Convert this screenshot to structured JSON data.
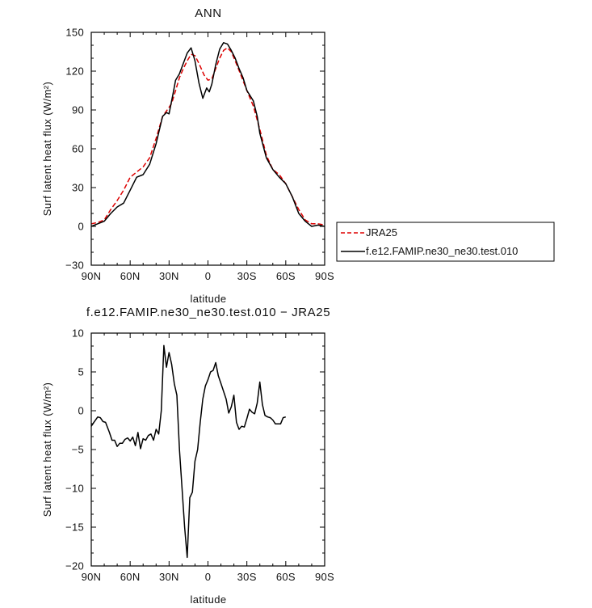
{
  "chart_data": [
    {
      "type": "line",
      "title": "ANN",
      "xlabel": "latitude",
      "ylabel": "Surf latent heat flux (W/m²)",
      "xlim": [
        90,
        -90
      ],
      "ylim": [
        -30,
        150
      ],
      "xticks": [
        90,
        60,
        30,
        0,
        -30,
        -60,
        -90
      ],
      "xtick_labels": [
        "90N",
        "60N",
        "30N",
        "0",
        "30S",
        "60S",
        "90S"
      ],
      "yticks": [
        -30,
        0,
        30,
        60,
        90,
        120,
        150
      ],
      "ytick_labels": [
        "−30",
        "0",
        "30",
        "60",
        "90",
        "120",
        "150"
      ],
      "grid": false,
      "legend_position": "outside-right",
      "series": [
        {
          "name": "JRA25",
          "color": "#dd0000",
          "dash": "dashed",
          "points": [
            [
              90,
              2
            ],
            [
              85,
              3
            ],
            [
              80,
              5
            ],
            [
              75,
              13
            ],
            [
              70,
              20
            ],
            [
              65,
              28
            ],
            [
              60,
              38
            ],
            [
              55,
              42
            ],
            [
              50,
              46
            ],
            [
              45,
              53
            ],
            [
              40,
              68
            ],
            [
              35,
              85
            ],
            [
              30,
              92
            ],
            [
              28,
              95
            ],
            [
              25,
              105
            ],
            [
              22,
              115
            ],
            [
              19,
              122
            ],
            [
              16,
              128
            ],
            [
              13,
              133
            ],
            [
              10,
              132
            ],
            [
              7,
              126
            ],
            [
              3,
              117
            ],
            [
              0,
              113
            ],
            [
              -3,
              114
            ],
            [
              -6,
              122
            ],
            [
              -9,
              130
            ],
            [
              -12,
              136
            ],
            [
              -15,
              138
            ],
            [
              -18,
              135
            ],
            [
              -21,
              128
            ],
            [
              -25,
              118
            ],
            [
              -30,
              105
            ],
            [
              -35,
              93
            ],
            [
              -40,
              75
            ],
            [
              -45,
              55
            ],
            [
              -50,
              44
            ],
            [
              -55,
              40
            ],
            [
              -60,
              33
            ],
            [
              -65,
              23
            ],
            [
              -70,
              13
            ],
            [
              -75,
              5
            ],
            [
              -80,
              2
            ],
            [
              -85,
              2
            ],
            [
              -90,
              1
            ]
          ]
        },
        {
          "name": "f.e12.FAMIP.ne30_ne30.test.010",
          "color": "#000000",
          "dash": "solid",
          "points": [
            [
              90,
              0
            ],
            [
              85,
              2
            ],
            [
              80,
              4
            ],
            [
              75,
              10
            ],
            [
              70,
              15
            ],
            [
              65,
              18
            ],
            [
              60,
              28
            ],
            [
              55,
              38
            ],
            [
              50,
              40
            ],
            [
              45,
              48
            ],
            [
              40,
              64
            ],
            [
              35,
              85
            ],
            [
              32,
              88
            ],
            [
              30,
              87
            ],
            [
              27,
              102
            ],
            [
              25,
              113
            ],
            [
              22,
              118
            ],
            [
              19,
              126
            ],
            [
              16,
              134
            ],
            [
              13,
              138
            ],
            [
              10,
              128
            ],
            [
              7,
              111
            ],
            [
              4,
              99
            ],
            [
              1,
              107
            ],
            [
              -1,
              104
            ],
            [
              -3,
              110
            ],
            [
              -6,
              125
            ],
            [
              -9,
              137
            ],
            [
              -12,
              142
            ],
            [
              -15,
              141
            ],
            [
              -18,
              136
            ],
            [
              -21,
              130
            ],
            [
              -24,
              122
            ],
            [
              -27,
              115
            ],
            [
              -30,
              105
            ],
            [
              -35,
              97
            ],
            [
              -38,
              85
            ],
            [
              -40,
              72
            ],
            [
              -45,
              53
            ],
            [
              -50,
              44
            ],
            [
              -55,
              38
            ],
            [
              -60,
              33
            ],
            [
              -65,
              23
            ],
            [
              -70,
              10
            ],
            [
              -75,
              4
            ],
            [
              -80,
              0
            ],
            [
              -85,
              1
            ],
            [
              -90,
              0
            ]
          ]
        }
      ]
    },
    {
      "type": "line",
      "title": "f.e12.FAMIP.ne30_ne30.test.010 − JRA25",
      "xlabel": "latitude",
      "ylabel": "Surf latent heat flux (W/m²)",
      "xlim": [
        90,
        -90
      ],
      "ylim": [
        -20,
        10
      ],
      "xticks": [
        90,
        60,
        30,
        0,
        -30,
        -60,
        -90
      ],
      "xtick_labels": [
        "90N",
        "60N",
        "30N",
        "0",
        "30S",
        "60S",
        "90S"
      ],
      "yticks": [
        -20,
        -15,
        -10,
        -5,
        0,
        5,
        10
      ],
      "ytick_labels": [
        "−20",
        "−15",
        "−10",
        "−5",
        "0",
        "5",
        "10"
      ],
      "grid": false,
      "series": [
        {
          "color": "#000000",
          "dash": "solid",
          "points": [
            [
              90,
              -2.0
            ],
            [
              88,
              -1.5
            ],
            [
              85,
              -0.8
            ],
            [
              83,
              -0.9
            ],
            [
              81,
              -1.4
            ],
            [
              79,
              -1.5
            ],
            [
              76,
              -2.8
            ],
            [
              74,
              -3.8
            ],
            [
              72,
              -3.8
            ],
            [
              70,
              -4.6
            ],
            [
              68,
              -4.2
            ],
            [
              66,
              -4.2
            ],
            [
              64,
              -3.7
            ],
            [
              62,
              -3.5
            ],
            [
              60,
              -3.9
            ],
            [
              58,
              -3.4
            ],
            [
              56,
              -4.5
            ],
            [
              54,
              -2.8
            ],
            [
              52,
              -4.9
            ],
            [
              50,
              -3.6
            ],
            [
              48,
              -3.8
            ],
            [
              46,
              -3.2
            ],
            [
              44,
              -3.0
            ],
            [
              42,
              -3.8
            ],
            [
              40,
              -2.4
            ],
            [
              38,
              -3.0
            ],
            [
              36,
              0.0
            ],
            [
              34,
              8.4
            ],
            [
              32,
              5.6
            ],
            [
              30,
              7.5
            ],
            [
              28,
              6.0
            ],
            [
              26,
              3.5
            ],
            [
              24,
              2.0
            ],
            [
              22,
              -5.0
            ],
            [
              20,
              -10.0
            ],
            [
              18,
              -15.0
            ],
            [
              16,
              -18.9
            ],
            [
              14,
              -11.2
            ],
            [
              12,
              -10.5
            ],
            [
              10,
              -6.5
            ],
            [
              8,
              -5.0
            ],
            [
              6,
              -1.5
            ],
            [
              4,
              1.5
            ],
            [
              2,
              3.2
            ],
            [
              0,
              4.0
            ],
            [
              -2,
              5.0
            ],
            [
              -4,
              5.2
            ],
            [
              -6,
              6.2
            ],
            [
              -8,
              4.5
            ],
            [
              -10,
              3.5
            ],
            [
              -12,
              2.5
            ],
            [
              -14,
              1.5
            ],
            [
              -16,
              -0.3
            ],
            [
              -18,
              0.5
            ],
            [
              -20,
              2.0
            ],
            [
              -22,
              -1.5
            ],
            [
              -24,
              -2.4
            ],
            [
              -26,
              -2.0
            ],
            [
              -28,
              -2.1
            ],
            [
              -30,
              -1.0
            ],
            [
              -32,
              0.2
            ],
            [
              -34,
              -0.2
            ],
            [
              -36,
              -0.4
            ],
            [
              -38,
              1.0
            ],
            [
              -40,
              3.7
            ],
            [
              -42,
              0.8
            ],
            [
              -44,
              -0.6
            ],
            [
              -46,
              -0.8
            ],
            [
              -48,
              -0.9
            ],
            [
              -50,
              -1.2
            ],
            [
              -52,
              -1.7
            ],
            [
              -54,
              -1.7
            ],
            [
              -56,
              -1.7
            ],
            [
              -58,
              -0.9
            ],
            [
              -60,
              -0.8
            ]
          ]
        }
      ]
    }
  ],
  "panels": [
    {
      "title": "ANN",
      "xlabel": "latitude",
      "ylabel": "Surf latent heat flux (W/m²)",
      "legend": [
        "JRA25",
        "f.e12.FAMIP.ne30_ne30.test.010"
      ]
    },
    {
      "title": "f.e12.FAMIP.ne30_ne30.test.010 − JRA25",
      "xlabel": "latitude",
      "ylabel": "Surf latent heat flux (W/m²)"
    }
  ]
}
